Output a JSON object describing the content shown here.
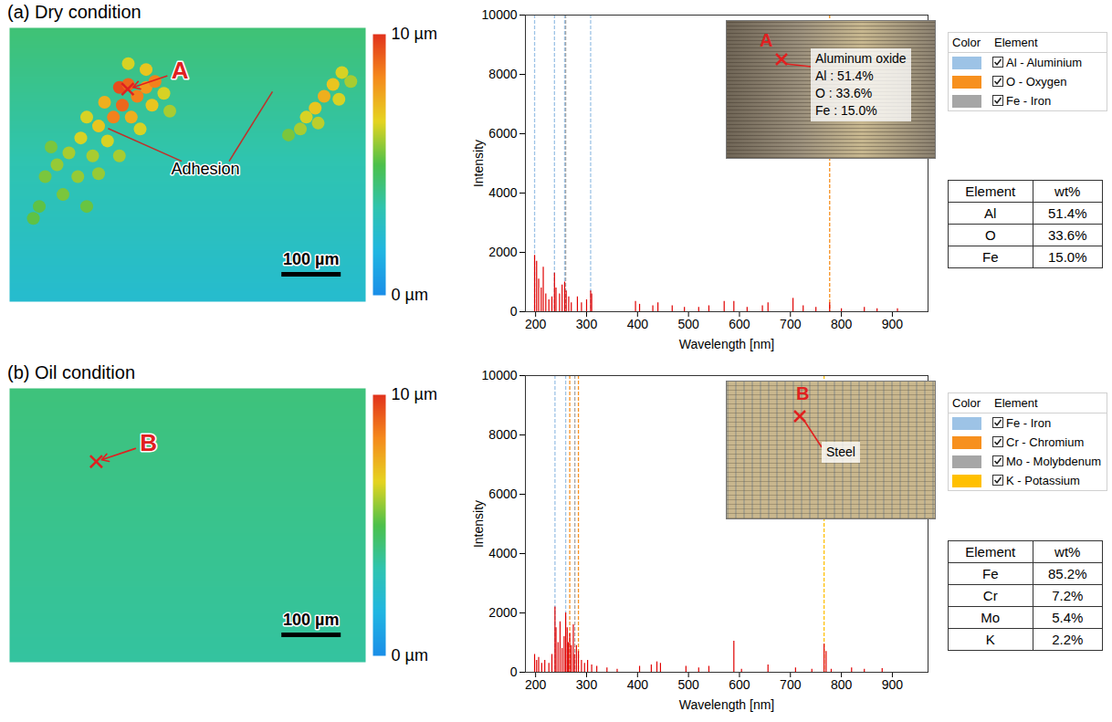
{
  "chart_data": [
    {
      "type": "heatmap",
      "title": "(a) Dry condition",
      "xlim": [
        0,
        600
      ],
      "ylim": [
        0,
        460
      ],
      "tick_labels": false,
      "surface_height": {
        "top": 4.3,
        "bottom": 2.3
      },
      "spots": {
        "x": [
          185,
          200,
          215,
          230,
          245,
          190,
          175,
          205,
          160,
          240,
          260,
          150,
          130,
          120,
          165,
          100,
          140,
          80,
          115,
          60,
          90,
          50,
          150,
          185,
          70,
          220,
          270,
          40,
          130,
          200,
          230,
          560,
          545,
          530,
          515,
          500,
          575,
          490,
          470,
          520,
          555
        ],
        "y": [
          100,
          95,
          115,
          100,
          90,
          130,
          150,
          150,
          125,
          130,
          110,
          165,
          150,
          185,
          190,
          210,
          215,
          230,
          250,
          250,
          280,
          300,
          245,
          215,
          200,
          170,
          140,
          320,
          300,
          60,
          70,
          75,
          95,
          115,
          135,
          150,
          90,
          170,
          180,
          160,
          120
        ],
        "values": [
          9.5,
          9,
          8.5,
          8,
          8.5,
          9,
          8.5,
          7.5,
          7.5,
          7,
          6.5,
          7,
          6.5,
          6.5,
          6.5,
          6,
          6,
          5.8,
          5.8,
          5.5,
          5.5,
          5.2,
          5.8,
          6,
          5.5,
          6.5,
          6,
          5.2,
          5.3,
          6.5,
          7,
          6.5,
          7,
          7.5,
          7,
          6.5,
          6,
          6,
          5.5,
          6.2,
          6.5
        ]
      },
      "colorbar": {
        "range": [
          0,
          10
        ],
        "ticks": [
          {
            "value": 0,
            "label": "0 µm"
          },
          {
            "value": 10,
            "label": "10 µm"
          }
        ]
      },
      "scale_bar": {
        "length": 100,
        "label": "100 µm"
      },
      "marker": {
        "label": "A",
        "x": 199,
        "y": 103
      },
      "annotation": {
        "text": "Adhesion",
        "x": 330,
        "y": 238,
        "points_to": [
          [
            166,
            169
          ],
          [
            443,
            107
          ]
        ]
      }
    },
    {
      "type": "stem",
      "x_label": "Wavelength [nm]",
      "y_label": "Intensity",
      "xlim": [
        180,
        970
      ],
      "xticks": [
        200,
        300,
        400,
        500,
        600,
        700,
        800,
        900
      ],
      "ylim": [
        0,
        10000
      ],
      "yticks": [
        0,
        2000,
        4000,
        6000,
        8000,
        10000
      ],
      "grid": false,
      "legend": "right",
      "color": "#e00000",
      "x": [
        198,
        202,
        206,
        211,
        215,
        220,
        226,
        232,
        237,
        240,
        247,
        252,
        257,
        260,
        265,
        270,
        282,
        290,
        300,
        308,
        310,
        396,
        404,
        430,
        440,
        468,
        492,
        520,
        540,
        570,
        589,
        615,
        645,
        656,
        705,
        725,
        750,
        777,
        800,
        845,
        870,
        910
      ],
      "values": [
        1900,
        1700,
        1100,
        800,
        1500,
        600,
        400,
        500,
        1300,
        800,
        600,
        900,
        1000,
        700,
        500,
        300,
        500,
        300,
        400,
        700,
        600,
        350,
        250,
        200,
        300,
        200,
        150,
        150,
        200,
        350,
        350,
        150,
        200,
        300,
        450,
        200,
        150,
        300,
        100,
        150,
        100,
        100
      ],
      "element_lines": [
        {
          "name": "Al - Aluminium",
          "color": "#9dc3e6",
          "x": [
            198,
            237,
            257,
            308
          ]
        },
        {
          "name": "O - Oxygen",
          "color": "#f7901e",
          "x": [
            777
          ]
        },
        {
          "name": "Fe - Iron",
          "color": "#a6a6a6",
          "x": [
            259
          ]
        }
      ],
      "legend_header": [
        "Color",
        "Element"
      ],
      "inset": {
        "marker": "A",
        "texts": [
          "Aluminum oxide",
          "Al : 51.4%",
          "O : 33.6%",
          "Fe : 15.0%"
        ]
      },
      "table": {
        "header": [
          "Element",
          "wt%"
        ],
        "rows": [
          [
            "Al",
            "51.4%"
          ],
          [
            "O",
            "33.6%"
          ],
          [
            "Fe",
            "15.0%"
          ]
        ]
      }
    },
    {
      "type": "heatmap",
      "title": "(b) Oil condition",
      "xlim": [
        0,
        600
      ],
      "ylim": [
        0,
        460
      ],
      "tick_labels": false,
      "surface_height": {
        "top": 4.2,
        "bottom": 3.6
      },
      "colorbar": {
        "range": [
          0,
          10
        ],
        "ticks": [
          {
            "value": 0,
            "label": "0 µm"
          },
          {
            "value": 10,
            "label": "10 µm"
          }
        ]
      },
      "scale_bar": {
        "length": 100,
        "label": "100 µm"
      },
      "marker": {
        "label": "B",
        "x": 146,
        "y": 123
      }
    },
    {
      "type": "stem",
      "x_label": "Wavelength [nm]",
      "y_label": "Intensity",
      "xlim": [
        180,
        970
      ],
      "xticks": [
        200,
        300,
        400,
        500,
        600,
        700,
        800,
        900
      ],
      "ylim": [
        0,
        10000
      ],
      "yticks": [
        0,
        2000,
        4000,
        6000,
        8000,
        10000
      ],
      "grid": false,
      "legend": "right",
      "color": "#e00000",
      "x": [
        198,
        202,
        206,
        212,
        218,
        226,
        232,
        238,
        240,
        244,
        248,
        252,
        256,
        259,
        262,
        264,
        267,
        270,
        274,
        276,
        280,
        284,
        290,
        296,
        302,
        310,
        320,
        340,
        360,
        404,
        427,
        438,
        445,
        495,
        520,
        540,
        589,
        604,
        656,
        710,
        742,
        766,
        770,
        780,
        820,
        845,
        880
      ],
      "values": [
        600,
        400,
        500,
        300,
        400,
        300,
        600,
        2200,
        1500,
        1000,
        1700,
        800,
        1200,
        2000,
        1500,
        1000,
        1300,
        900,
        1600,
        600,
        900,
        700,
        400,
        300,
        400,
        250,
        200,
        150,
        100,
        200,
        250,
        350,
        300,
        200,
        150,
        200,
        1050,
        100,
        250,
        150,
        100,
        950,
        700,
        100,
        150,
        100,
        120
      ],
      "element_lines": [
        {
          "name": "Fe - Iron",
          "color": "#9dc3e6",
          "x": [
            238,
            259
          ]
        },
        {
          "name": "Cr - Chromium",
          "color": "#f7901e",
          "x": [
            267,
            284
          ]
        },
        {
          "name": "Mo - Molybdenum",
          "color": "#a6a6a6",
          "x": [
            277
          ]
        },
        {
          "name": "K - Potassium",
          "color": "#ffc000",
          "x": [
            766
          ]
        }
      ],
      "legend_header": [
        "Color",
        "Element"
      ],
      "inset": {
        "marker": "B",
        "texts": [
          "Steel"
        ]
      },
      "table": {
        "header": [
          "Element",
          "wt%"
        ],
        "rows": [
          [
            "Fe",
            "85.2%"
          ],
          [
            "Cr",
            "7.2%"
          ],
          [
            "Mo",
            "5.4%"
          ],
          [
            "K",
            "2.2%"
          ]
        ]
      }
    }
  ]
}
